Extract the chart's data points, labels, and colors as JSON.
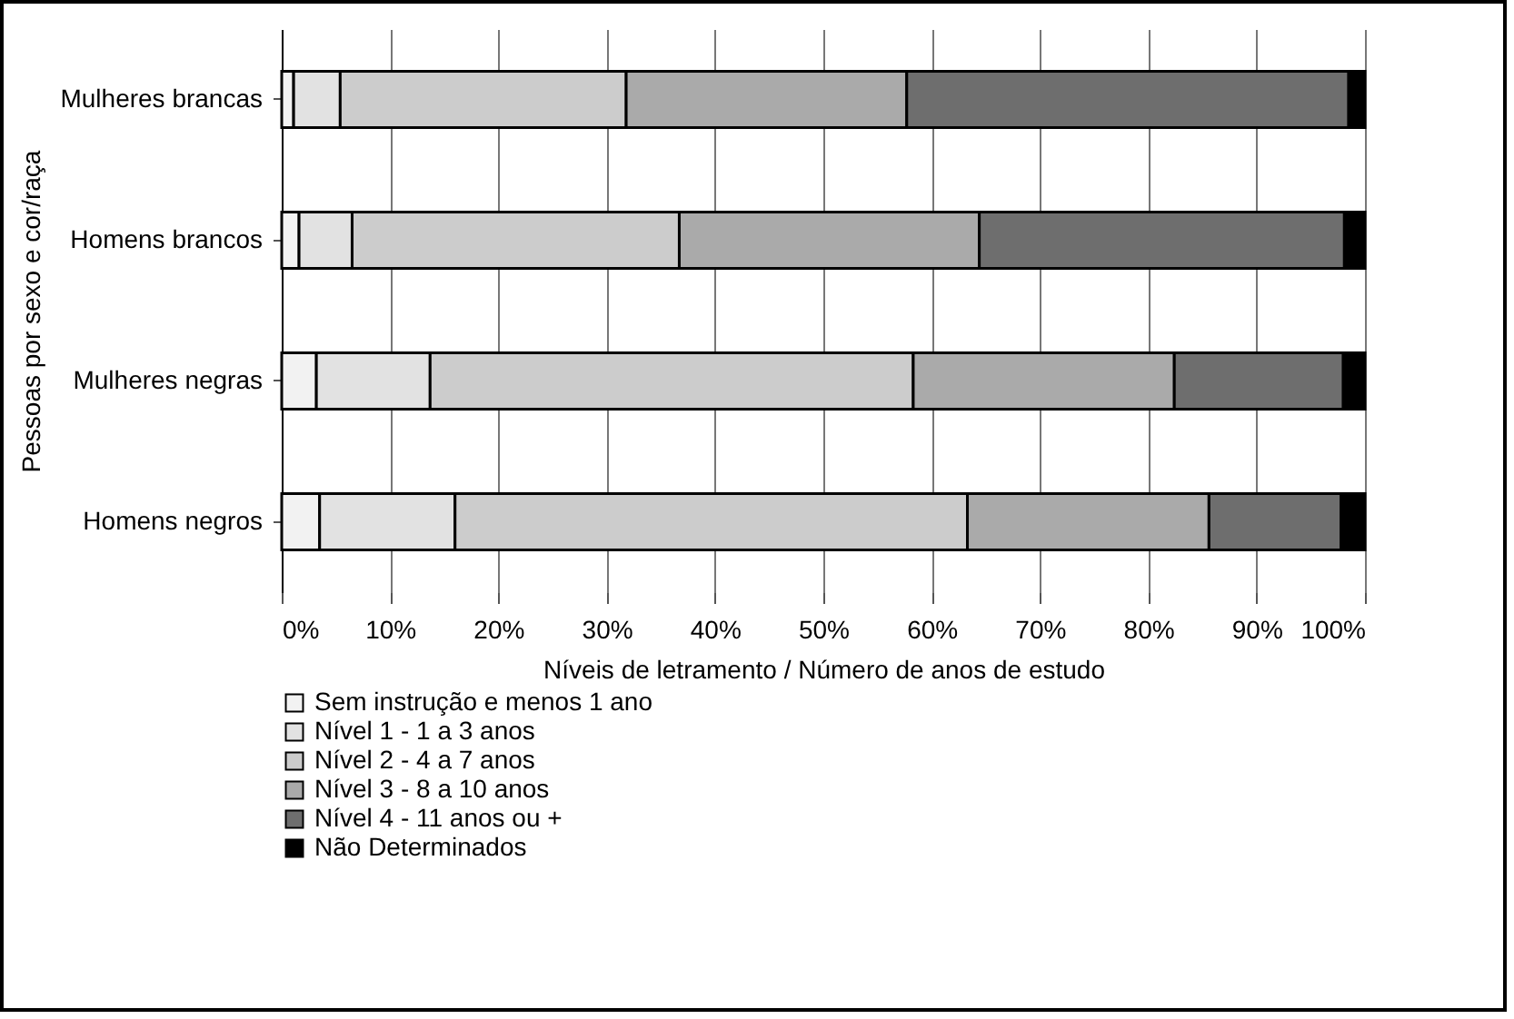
{
  "chart_data": {
    "type": "bar",
    "orientation": "horizontal",
    "stacked": true,
    "xlabel": "Níveis de letramento / Número de anos de estudo",
    "ylabel": "Pessoas por sexo e cor/raça",
    "categories": [
      "Mulheres brancas",
      "Homens brancos",
      "Mulheres negras",
      "Homens negros"
    ],
    "series": [
      {
        "name": "Sem instrução e menos 1 ano",
        "color": "#f2f2f2",
        "values": [
          1.1,
          1.6,
          3.2,
          3.5
        ]
      },
      {
        "name": "Nível 1   -    1 a 3 anos",
        "color": "#e2e2e2",
        "values": [
          4.3,
          4.9,
          10.5,
          12.5
        ]
      },
      {
        "name": "Nível 2   -    4  a 7 anos",
        "color": "#cccccc",
        "values": [
          26.4,
          30.2,
          44.6,
          47.3
        ]
      },
      {
        "name": "Nível 3   -    8 a 10 anos",
        "color": "#aaaaaa",
        "values": [
          25.9,
          27.7,
          24.1,
          22.3
        ]
      },
      {
        "name": "Nível 4   -    11 anos ou +",
        "color": "#6e6e6e",
        "values": [
          40.8,
          33.7,
          15.6,
          12.2
        ]
      },
      {
        "name": "Não Determinados",
        "color": "#000000",
        "values": [
          1.5,
          1.9,
          2.0,
          2.2
        ]
      }
    ],
    "xlim": [
      0,
      100
    ],
    "xticks": [
      {
        "value": 0,
        "label": "0%"
      },
      {
        "value": 10,
        "label": "10%"
      },
      {
        "value": 20,
        "label": "20%"
      },
      {
        "value": 30,
        "label": "30%"
      },
      {
        "value": 40,
        "label": "40%"
      },
      {
        "value": 50,
        "label": "50%"
      },
      {
        "value": 60,
        "label": "60%"
      },
      {
        "value": 70,
        "label": "70%"
      },
      {
        "value": 80,
        "label": "80%"
      },
      {
        "value": 90,
        "label": "90%"
      },
      {
        "value": 100,
        "label": "100%"
      }
    ],
    "grid": "x",
    "legend": "bottom"
  }
}
